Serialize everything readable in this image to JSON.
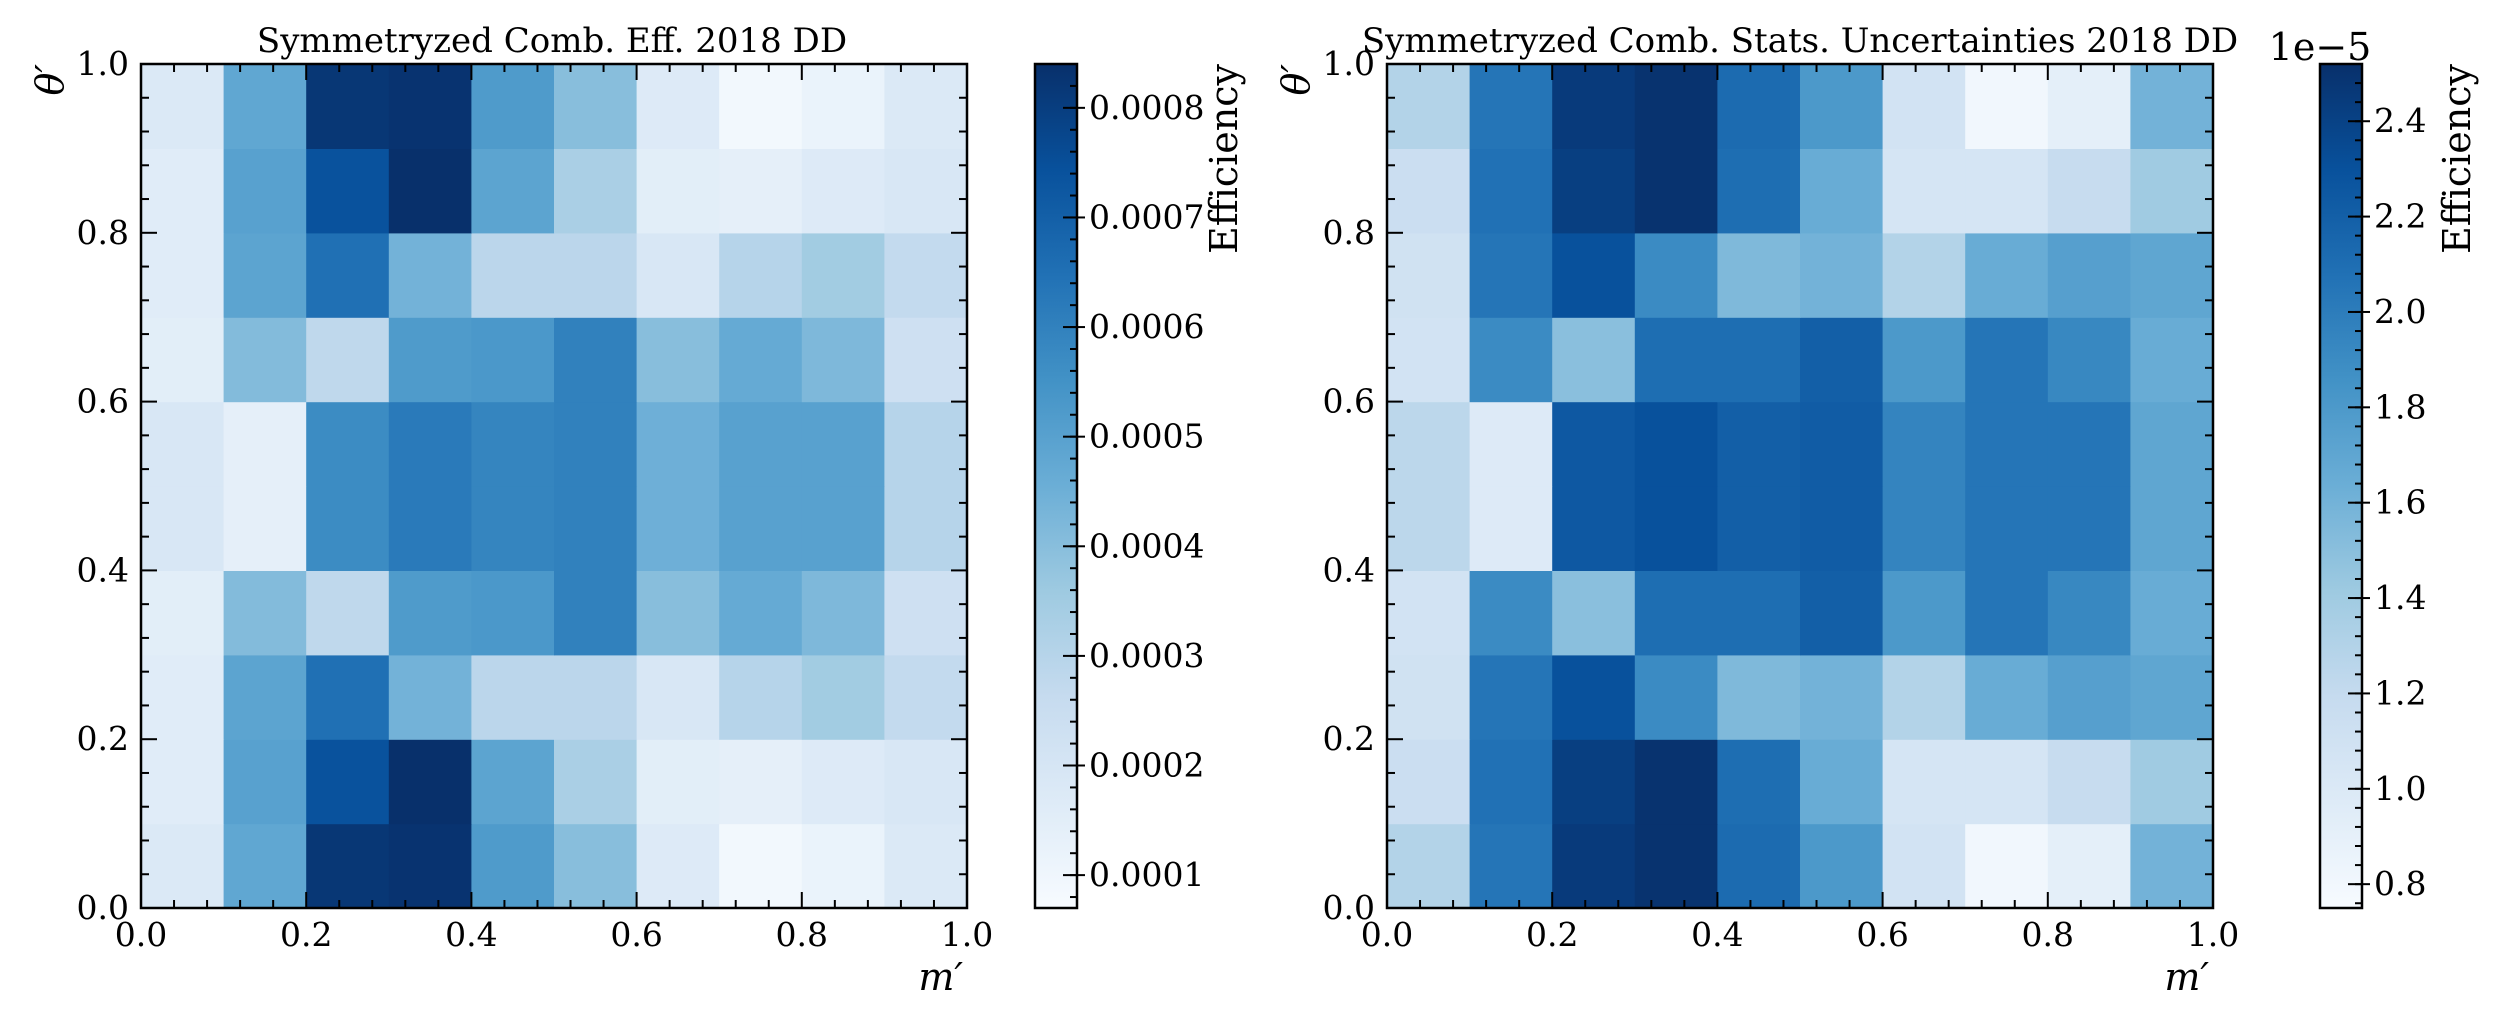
{
  "chart_data": [
    {
      "type": "heatmap",
      "title": "Symmetryzed Comb. Eff. 2018 DD",
      "xlabel": "m′",
      "ylabel": "θ′",
      "xlim": [
        0.0,
        1.0
      ],
      "ylim": [
        0.0,
        1.0
      ],
      "x_edges": [
        0.0,
        0.1,
        0.2,
        0.3,
        0.4,
        0.5,
        0.6,
        0.7,
        0.8,
        0.9,
        1.0
      ],
      "y_edges": [
        0.0,
        0.1,
        0.2,
        0.3,
        0.4,
        0.5,
        0.6,
        0.7,
        0.8,
        0.9,
        1.0
      ],
      "x_ticks": [
        "0.0",
        "0.2",
        "0.4",
        "0.6",
        "0.8",
        "1.0"
      ],
      "y_ticks": [
        "0.0",
        "0.2",
        "0.4",
        "0.6",
        "0.8",
        "1.0"
      ],
      "colorbar": {
        "label": "Efficiency",
        "range": [
          7e-05,
          0.00084
        ],
        "ticks": [
          0.0001,
          0.0002,
          0.0003,
          0.0004,
          0.0005,
          0.0006,
          0.0007,
          0.0008
        ],
        "tick_labels": [
          "0.0001",
          "0.0002",
          "0.0003",
          "0.0004",
          "0.0005",
          "0.0006",
          "0.0007",
          "0.0008"
        ],
        "offset_label": ""
      },
      "rows_bottom_to_top": [
        [
          0.00018,
          0.00048,
          0.00082,
          0.00083,
          0.00052,
          0.0004,
          0.00017,
          9e-05,
          0.00012,
          0.00018
        ],
        [
          0.00016,
          0.0005,
          0.00074,
          0.00084,
          0.00049,
          0.00033,
          0.00015,
          0.00014,
          0.00017,
          0.00019
        ],
        [
          0.00016,
          0.00049,
          0.00065,
          0.00044,
          0.00029,
          0.00029,
          0.00019,
          0.0003,
          0.00035,
          0.00027
        ],
        [
          0.00015,
          0.00041,
          0.00028,
          0.00052,
          0.00053,
          0.0006,
          0.0004,
          0.00047,
          0.00042,
          0.00023
        ],
        [
          0.00019,
          0.00014,
          0.00057,
          0.00062,
          0.00059,
          0.0006,
          0.00045,
          0.0005,
          0.0005,
          0.0003
        ],
        [
          0.00019,
          0.00014,
          0.00057,
          0.00062,
          0.00059,
          0.0006,
          0.00045,
          0.0005,
          0.0005,
          0.0003
        ],
        [
          0.00015,
          0.00041,
          0.00028,
          0.00052,
          0.00053,
          0.0006,
          0.0004,
          0.00047,
          0.00042,
          0.00023
        ],
        [
          0.00016,
          0.00049,
          0.00065,
          0.00044,
          0.00029,
          0.00029,
          0.00019,
          0.0003,
          0.00035,
          0.00027
        ],
        [
          0.00016,
          0.0005,
          0.00074,
          0.00084,
          0.00049,
          0.00033,
          0.00015,
          0.00014,
          0.00017,
          0.00019
        ],
        [
          0.00018,
          0.00048,
          0.00082,
          0.00083,
          0.00052,
          0.0004,
          0.00017,
          9e-05,
          0.00012,
          0.00018
        ]
      ]
    },
    {
      "type": "heatmap",
      "title": "Symmetryzed Comb. Stats. Uncertainties 2018 DD",
      "xlabel": "m′",
      "ylabel": "θ′",
      "xlim": [
        0.0,
        1.0
      ],
      "ylim": [
        0.0,
        1.0
      ],
      "x_edges": [
        0.0,
        0.1,
        0.2,
        0.3,
        0.4,
        0.5,
        0.6,
        0.7,
        0.8,
        0.9,
        1.0
      ],
      "y_edges": [
        0.0,
        0.1,
        0.2,
        0.3,
        0.4,
        0.5,
        0.6,
        0.7,
        0.8,
        0.9,
        1.0
      ],
      "x_ticks": [
        "0.0",
        "0.2",
        "0.4",
        "0.6",
        "0.8",
        "1.0"
      ],
      "y_ticks": [
        "0.0",
        "0.2",
        "0.4",
        "0.6",
        "0.8",
        "1.0"
      ],
      "colorbar": {
        "label": "Efficiency",
        "range": [
          0.75,
          2.52
        ],
        "ticks": [
          0.8,
          1.0,
          1.2,
          1.4,
          1.6,
          1.8,
          2.0,
          2.2,
          2.4
        ],
        "tick_labels": [
          "0.8",
          "1.0",
          "1.2",
          "1.4",
          "1.6",
          "1.8",
          "2.0",
          "2.2",
          "2.4"
        ],
        "offset_label": "1e−5"
      },
      "rows_bottom_to_top": [
        [
          1.3,
          2.05,
          2.45,
          2.5,
          2.12,
          1.8,
          1.08,
          0.8,
          0.92,
          1.6
        ],
        [
          1.15,
          2.08,
          2.42,
          2.5,
          2.1,
          1.65,
          1.05,
          1.05,
          1.18,
          1.4
        ],
        [
          1.1,
          2.05,
          2.3,
          1.9,
          1.55,
          1.6,
          1.3,
          1.65,
          1.75,
          1.7
        ],
        [
          1.08,
          1.9,
          1.5,
          2.1,
          2.1,
          2.2,
          1.8,
          2.05,
          1.92,
          1.65
        ],
        [
          1.25,
          0.98,
          2.25,
          2.3,
          2.2,
          2.22,
          1.95,
          2.05,
          2.05,
          1.7
        ],
        [
          1.25,
          0.98,
          2.25,
          2.3,
          2.2,
          2.22,
          1.95,
          2.05,
          2.05,
          1.7
        ],
        [
          1.08,
          1.9,
          1.5,
          2.1,
          2.1,
          2.2,
          1.8,
          2.05,
          1.92,
          1.65
        ],
        [
          1.1,
          2.05,
          2.3,
          1.9,
          1.55,
          1.6,
          1.3,
          1.65,
          1.75,
          1.7
        ],
        [
          1.15,
          2.08,
          2.42,
          2.5,
          2.1,
          1.65,
          1.05,
          1.05,
          1.18,
          1.4
        ],
        [
          1.3,
          2.05,
          2.45,
          2.5,
          2.12,
          1.8,
          1.08,
          0.8,
          0.92,
          1.6
        ]
      ]
    }
  ],
  "colormap": {
    "name": "Blues",
    "stops": [
      "#f7fbff",
      "#deebf7",
      "#c6dbef",
      "#9ecae1",
      "#6baed6",
      "#4292c6",
      "#2171b5",
      "#08519c",
      "#08306b"
    ]
  }
}
